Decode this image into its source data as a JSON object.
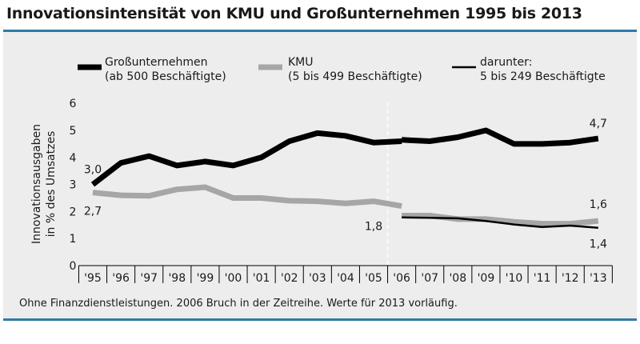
{
  "title": "Innovationsintensität von KMU und Großunternehmen 1995 bis 2013",
  "footnote": "Ohne Finanzdienstleistungen. 2006 Bruch in der Zeitreihe. Werte für 2013 vorläufig.",
  "colors": {
    "accent": "#2f7ba8",
    "panel": "#ededed",
    "large": "#000000",
    "kmu": "#a6a6a6",
    "small": "#000000"
  },
  "legend": [
    {
      "line1": "Großunternehmen",
      "line2": "(ab 500 Beschäftigte)"
    },
    {
      "line1": "KMU",
      "line2": "(5 bis 499 Beschäftigte)"
    },
    {
      "line1": "darunter:",
      "line2": "5 bis 249 Beschäftigte"
    }
  ],
  "chart_data": {
    "type": "line",
    "title": "Innovationsintensität von KMU und Großunternehmen 1995 bis 2013",
    "ylabel_line1": "Innovationsausgaben",
    "ylabel_line2": "in % des Umsatzes",
    "xlabel": "",
    "ylim": [
      0,
      6
    ],
    "yticks": [
      "0",
      "1",
      "2",
      "3",
      "4",
      "5",
      "6"
    ],
    "categories": [
      "'95",
      "'96",
      "'97",
      "'98",
      "'99",
      "'00",
      "'01",
      "'02",
      "'03",
      "'04",
      "'05",
      "'06",
      "'07",
      "'08",
      "'09",
      "'10",
      "'11",
      "'12",
      "'13"
    ],
    "break_after_index": 10,
    "series": [
      {
        "name": "Großunternehmen (ab 500 Beschäftigte)",
        "segments": [
          {
            "start": 0,
            "values": [
              3.0,
              3.8,
              4.05,
              3.7,
              3.85,
              3.7,
              4.0,
              4.6,
              4.9,
              4.8,
              4.55,
              4.6
            ]
          },
          {
            "start": 11,
            "values": [
              4.65,
              4.6,
              4.75,
              5.0,
              4.5,
              4.5,
              4.55,
              4.7
            ]
          }
        ]
      },
      {
        "name": "KMU (5 bis 499 Beschäftigte)",
        "segments": [
          {
            "start": 0,
            "values": [
              2.7,
              2.6,
              2.58,
              2.82,
              2.9,
              2.5,
              2.5,
              2.4,
              2.38,
              2.3,
              2.38,
              2.2
            ]
          },
          {
            "start": 11,
            "values": [
              1.85,
              1.85,
              1.72,
              1.72,
              1.62,
              1.55,
              1.55,
              1.65
            ]
          }
        ]
      },
      {
        "name": "darunter: 5 bis 249 Beschäftigte",
        "segments": [
          {
            "start": 11,
            "values": [
              1.78,
              1.77,
              1.75,
              1.65,
              1.52,
              1.43,
              1.48,
              1.4
            ]
          }
        ]
      }
    ],
    "annotations": [
      "3,0",
      "2,7",
      "1,8",
      "4,7",
      "1,6",
      "1,4"
    ]
  }
}
